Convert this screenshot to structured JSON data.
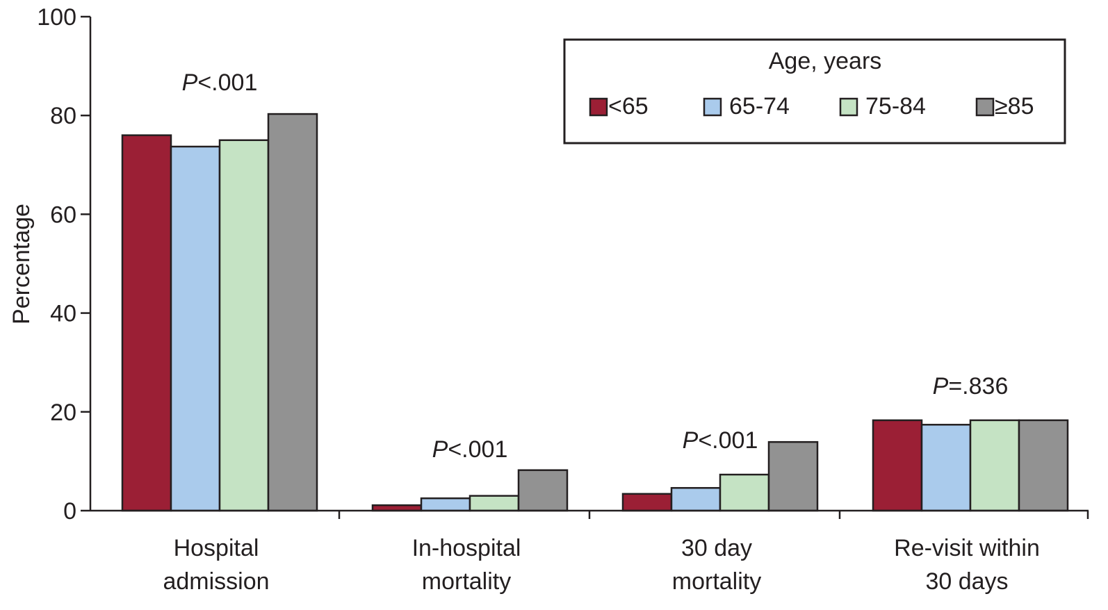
{
  "chart_data": {
    "type": "bar",
    "title": "",
    "xlabel": "",
    "ylabel": "Percentage",
    "ylim": [
      0,
      100
    ],
    "yticks": [
      0,
      20,
      40,
      60,
      80,
      100
    ],
    "grid": false,
    "legend_placement": "top-right",
    "legend_title": "Age, years",
    "categories": [
      [
        "Hospital",
        "admission"
      ],
      [
        "In-hospital",
        "mortality"
      ],
      [
        "30 day",
        "mortality"
      ],
      [
        "Re-visit within",
        "30 days"
      ]
    ],
    "annotations": [
      {
        "italic": "P",
        "text": "<.001"
      },
      {
        "italic": "P",
        "text": "<.001"
      },
      {
        "italic": "P",
        "text": "<.001"
      },
      {
        "italic": "P",
        "text": "=.836"
      }
    ],
    "series": [
      {
        "name": "<65",
        "color": "#9b1f35",
        "values": [
          76.0,
          1.1,
          3.4,
          18.3
        ]
      },
      {
        "name": "65-74",
        "color": "#aacbec",
        "values": [
          73.7,
          2.5,
          4.6,
          17.4
        ]
      },
      {
        "name": "75-84",
        "color": "#c5e3c4",
        "values": [
          75.0,
          3.0,
          7.3,
          18.3
        ]
      },
      {
        "name": "≥85",
        "color": "#929292",
        "values": [
          80.3,
          8.2,
          13.9,
          18.3
        ]
      }
    ]
  }
}
